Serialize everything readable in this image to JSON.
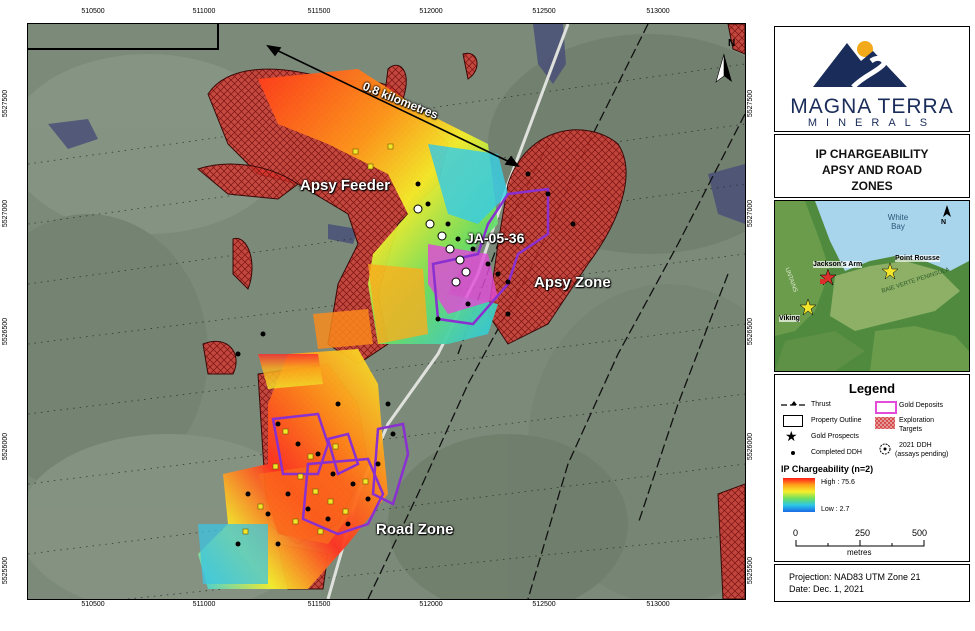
{
  "map": {
    "x_ticks": [
      "510500",
      "511000",
      "511500",
      "512000",
      "512500",
      "513000"
    ],
    "y_ticks": [
      "5527500",
      "5527000",
      "5526500",
      "5526000",
      "5525500"
    ],
    "labels": {
      "distance": "0.8 kilometres",
      "apsy_feeder": "Apsy Feeder",
      "ja_hole": "JA-05-36",
      "apsy_zone": "Apsy Zone",
      "road_zone": "Road Zone"
    },
    "north_label": "N"
  },
  "brand": {
    "line1": "MAGNA TERRA",
    "line2": "MINERALS"
  },
  "title": {
    "line1": "IP CHARGEABILITY",
    "line2": "APSY AND ROAD",
    "line3": "ZONES"
  },
  "inset": {
    "bay": "White Bay",
    "jacksons_arm": "Jackson's Arm",
    "point_rousse": "Point Rousse",
    "viking": "Viking",
    "north_label": "N",
    "coast_label_a": "UNTAINS",
    "coast_label_b": "BAIE VERTE PENINSULA"
  },
  "legend": {
    "title": "Legend",
    "thrust": "Thrust",
    "property_outline": "Property Outline",
    "gold_prospects": "Gold Prospects",
    "completed_ddh": "Completed DDH",
    "gold_deposits": "Gold Deposits",
    "exploration_targets_1": "Exploration",
    "exploration_targets_2": "Targets",
    "ddh_2021_1": "2021 DDH",
    "ddh_2021_2": "(assays pending)",
    "ip_title": "IP Chargeability (n=2)",
    "high": "High : 75.6",
    "low": "Low : 2.7"
  },
  "scale": {
    "ticks": [
      "0",
      "250",
      "500"
    ],
    "unit": "metres"
  },
  "projection": {
    "line1": "Projection: NAD83 UTM Zone 21",
    "line2": "Date: Dec. 1, 2021"
  },
  "colors": {
    "target_red": "#d9302b",
    "deposit_purple": "#8a2fd0",
    "prospect_yellow": "#f2e52a"
  }
}
